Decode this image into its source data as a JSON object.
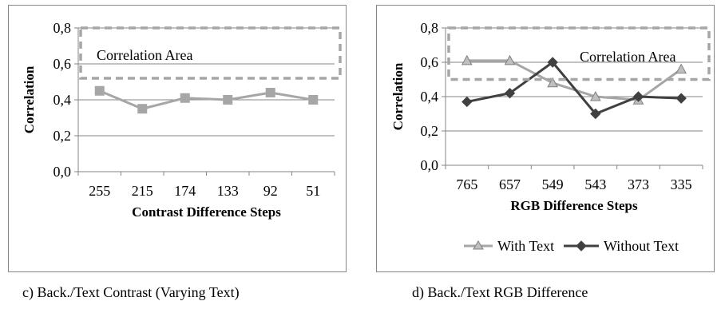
{
  "figure": {
    "caption_left": "c) Back./Text Contrast (Varying Text)",
    "caption_right": "d) Back./Text RGB Difference"
  },
  "chart_data": [
    {
      "type": "line",
      "categories": [
        "255",
        "215",
        "174",
        "133",
        "92",
        "51"
      ],
      "series": [
        {
          "values": [
            0.45,
            0.35,
            0.41,
            0.4,
            0.44,
            0.4
          ],
          "color": "#a6a6a6",
          "marker": "square"
        }
      ],
      "xlabel": "Contrast Difference Steps",
      "ylabel": "Correlation",
      "ylim": [
        0.0,
        0.8
      ],
      "yticks": [
        "0,0",
        "0,2",
        "0,4",
        "0,6",
        "0,8"
      ],
      "annotation": {
        "label": "Correlation Area",
        "y_range": [
          0.52,
          0.8
        ],
        "style": "dashed-box"
      },
      "grid": "horizontal",
      "legend": "none"
    },
    {
      "type": "line",
      "categories": [
        "765",
        "657",
        "549",
        "543",
        "373",
        "335"
      ],
      "series": [
        {
          "name": "With Text",
          "values": [
            0.61,
            0.61,
            0.48,
            0.4,
            0.38,
            0.56
          ],
          "color": "#a6a6a6",
          "marker": "triangle"
        },
        {
          "name": "Without Text",
          "values": [
            0.37,
            0.42,
            0.6,
            0.3,
            0.4,
            0.39
          ],
          "color": "#404040",
          "marker": "diamond"
        }
      ],
      "xlabel": "RGB Difference Steps",
      "ylabel": "Correlation",
      "ylim": [
        0.0,
        0.8
      ],
      "yticks": [
        "0,0",
        "0,2",
        "0,4",
        "0,6",
        "0,8"
      ],
      "annotation": {
        "label": "Correlation Area",
        "y_range": [
          0.5,
          0.8
        ],
        "style": "dashed-box"
      },
      "grid": "horizontal",
      "legend": "bottom"
    }
  ]
}
